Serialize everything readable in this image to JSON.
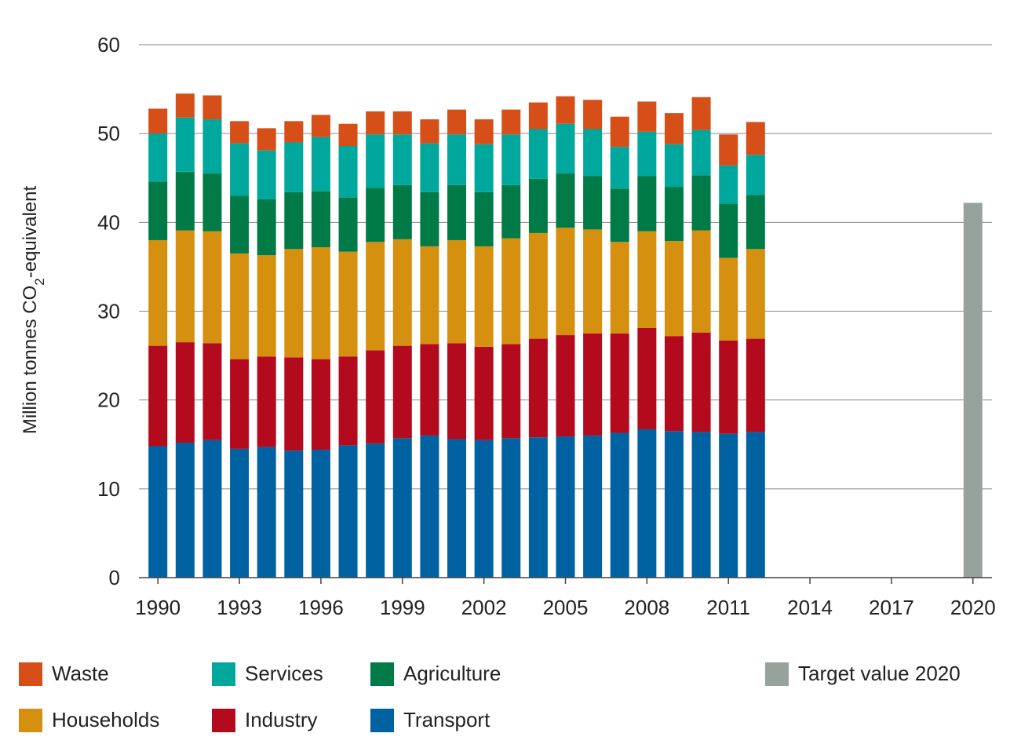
{
  "chart_data": {
    "type": "bar",
    "stacked": true,
    "ylabel_parts": [
      "Million tonnes CO",
      "2",
      "-equivalent"
    ],
    "ylim": [
      0,
      60
    ],
    "yticks": [
      0,
      10,
      20,
      30,
      40,
      50,
      60
    ],
    "xlim": [
      1989.3,
      2020.7
    ],
    "xticks": [
      1990,
      1993,
      1996,
      1999,
      2002,
      2005,
      2008,
      2011,
      2014,
      2017,
      2020
    ],
    "grid": true,
    "legend_position": "bottom",
    "x": [
      1990,
      1991,
      1992,
      1993,
      1994,
      1995,
      1996,
      1997,
      1998,
      1999,
      2000,
      2001,
      2002,
      2003,
      2004,
      2005,
      2006,
      2007,
      2008,
      2009,
      2010,
      2011,
      2012
    ],
    "series": [
      {
        "name": "Transport",
        "color": "#0062a0",
        "values": [
          14.8,
          15.2,
          15.5,
          14.5,
          14.7,
          14.3,
          14.4,
          14.9,
          15.1,
          15.7,
          16.0,
          15.6,
          15.5,
          15.7,
          15.8,
          15.9,
          16.0,
          16.3,
          16.7,
          16.5,
          16.4,
          16.2,
          16.4
        ]
      },
      {
        "name": "Industry",
        "color": "#b30a1e",
        "values": [
          11.3,
          11.3,
          10.9,
          10.1,
          10.2,
          10.5,
          10.2,
          10.0,
          10.5,
          10.4,
          10.3,
          10.8,
          10.5,
          10.6,
          11.1,
          11.4,
          11.5,
          11.2,
          11.4,
          10.7,
          11.2,
          10.5,
          10.5
        ]
      },
      {
        "name": "Households",
        "color": "#d4900e",
        "values": [
          11.9,
          12.6,
          12.6,
          11.9,
          11.4,
          12.2,
          12.6,
          11.8,
          12.2,
          12.0,
          11.0,
          11.6,
          11.3,
          11.9,
          11.9,
          12.1,
          11.7,
          10.3,
          10.9,
          10.7,
          11.5,
          9.3,
          10.1
        ]
      },
      {
        "name": "Agriculture",
        "color": "#007a47",
        "values": [
          6.6,
          6.6,
          6.5,
          6.5,
          6.3,
          6.4,
          6.3,
          6.1,
          6.1,
          6.1,
          6.1,
          6.2,
          6.1,
          6.0,
          6.1,
          6.1,
          6.0,
          6.0,
          6.2,
          6.1,
          6.2,
          6.1,
          6.1
        ]
      },
      {
        "name": "Services",
        "color": "#00a79c",
        "values": [
          5.4,
          6.1,
          6.1,
          5.9,
          5.5,
          5.6,
          6.1,
          5.8,
          6.0,
          5.7,
          5.5,
          5.7,
          5.4,
          5.7,
          5.6,
          5.6,
          5.3,
          4.7,
          5.0,
          4.8,
          5.1,
          4.3,
          4.5
        ]
      },
      {
        "name": "Waste",
        "color": "#d64f18",
        "values": [
          2.8,
          2.7,
          2.7,
          2.5,
          2.5,
          2.4,
          2.5,
          2.5,
          2.6,
          2.6,
          2.7,
          2.8,
          2.8,
          2.8,
          3.0,
          3.1,
          3.3,
          3.4,
          3.4,
          3.5,
          3.7,
          3.5,
          3.7
        ]
      }
    ],
    "target": {
      "name": "Target value 2020",
      "year": 2020,
      "value": 42.2,
      "color": "#95a39c"
    }
  },
  "legend": {
    "waste": "Waste",
    "services": "Services",
    "agriculture": "Agriculture",
    "households": "Households",
    "industry": "Industry",
    "transport": "Transport",
    "target": "Target value 2020"
  }
}
